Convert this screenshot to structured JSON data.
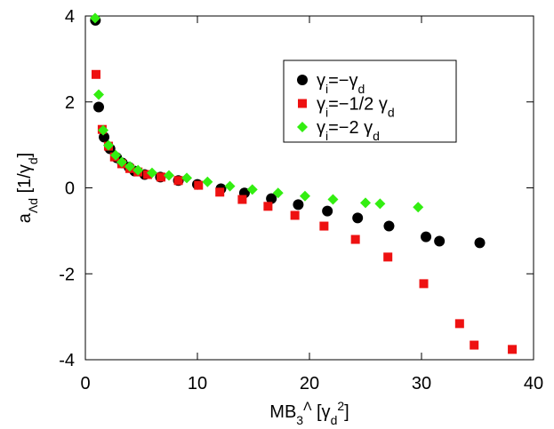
{
  "chart_data": {
    "type": "scatter",
    "x_label": [
      "MB",
      "3",
      "Λ",
      " [γ",
      "d",
      "2",
      "]"
    ],
    "y_label": [
      "a",
      "Λd",
      " [1/γ",
      "d",
      "]"
    ],
    "xlim": [
      0,
      40
    ],
    "xticks": [
      0,
      10,
      20,
      30,
      40
    ],
    "ylim": [
      -4,
      4
    ],
    "yticks": [
      -4,
      -2,
      0,
      2,
      4
    ],
    "legend": "upper right",
    "series": [
      {
        "name": [
          "γ",
          "i",
          "=−γ",
          "d"
        ],
        "color": "#000000",
        "marker": "circle",
        "x": [
          0.9,
          1.19,
          1.67,
          2.2,
          2.8,
          3.3,
          3.9,
          4.4,
          5.3,
          6.7,
          8.3,
          10.0,
          12.1,
          14.2,
          16.6,
          19.0,
          21.6,
          24.3,
          27.1,
          30.4,
          31.6,
          35.2
        ],
        "values": [
          3.9,
          1.88,
          1.18,
          0.91,
          0.7,
          0.58,
          0.48,
          0.39,
          0.31,
          0.25,
          0.17,
          0.08,
          -0.02,
          -0.12,
          -0.25,
          -0.39,
          -0.54,
          -0.7,
          -0.89,
          -1.14,
          -1.24,
          -1.28
        ]
      },
      {
        "name": [
          "γ",
          "i",
          "=−1/2 γ",
          "d"
        ],
        "color": "#ee1111",
        "marker": "square",
        "x": [
          0.95,
          1.5,
          2.06,
          2.6,
          3.25,
          3.97,
          4.7,
          5.56,
          6.75,
          8.3,
          10.1,
          12.0,
          14.0,
          16.3,
          18.7,
          21.3,
          24.1,
          27.0,
          30.2,
          33.4,
          34.7,
          38.1
        ],
        "values": [
          2.64,
          1.36,
          0.97,
          0.72,
          0.56,
          0.45,
          0.37,
          0.31,
          0.25,
          0.17,
          0.06,
          -0.1,
          -0.27,
          -0.43,
          -0.64,
          -0.89,
          -1.2,
          -1.61,
          -2.23,
          -3.16,
          -3.66,
          -3.76
        ]
      },
      {
        "name": [
          "γ",
          "i",
          "=−2 γ",
          "d"
        ],
        "color": "#33ee11",
        "marker": "diamond",
        "x": [
          0.87,
          1.19,
          1.59,
          2.06,
          2.7,
          3.25,
          3.97,
          4.7,
          5.95,
          7.46,
          9.05,
          10.9,
          12.9,
          14.9,
          17.2,
          19.6,
          22.1,
          25.0,
          26.3,
          29.7
        ],
        "values": [
          3.95,
          2.17,
          1.34,
          0.99,
          0.76,
          0.6,
          0.5,
          0.41,
          0.35,
          0.29,
          0.23,
          0.14,
          0.04,
          -0.04,
          -0.12,
          -0.19,
          -0.27,
          -0.35,
          -0.37,
          -0.45
        ]
      }
    ]
  }
}
